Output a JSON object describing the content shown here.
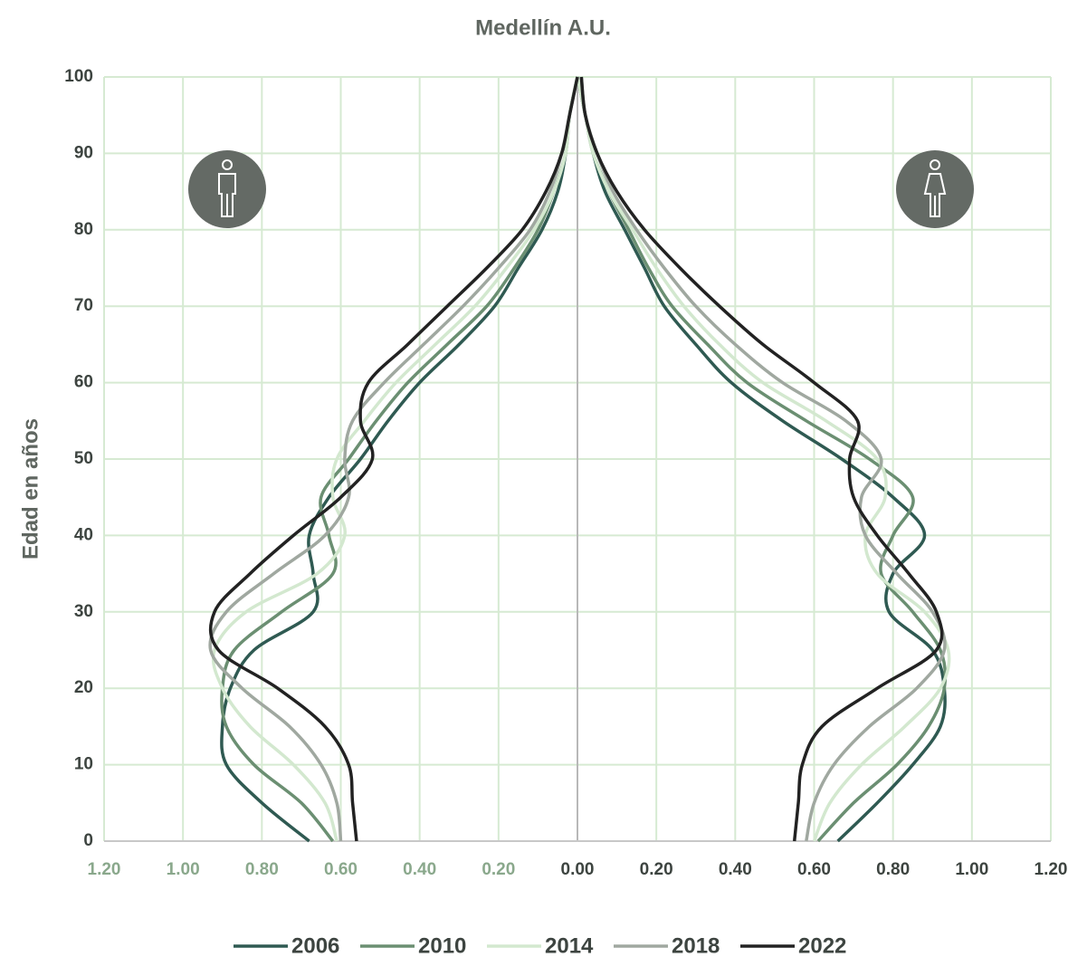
{
  "chart_data": {
    "type": "line",
    "title": "Medellín A.U.",
    "y_label": "Edad en años",
    "y": [
      0,
      5,
      10,
      15,
      20,
      25,
      30,
      35,
      40,
      45,
      50,
      55,
      60,
      65,
      70,
      75,
      80,
      85,
      90,
      95,
      100
    ],
    "xlim": [
      -1.2,
      1.2
    ],
    "xticks": [
      {
        "value": -1.2,
        "label": "1.20"
      },
      {
        "value": -1.0,
        "label": "1.00"
      },
      {
        "value": -0.8,
        "label": "0.80"
      },
      {
        "value": -0.6,
        "label": "0.60"
      },
      {
        "value": -0.4,
        "label": "0.40"
      },
      {
        "value": -0.2,
        "label": "0.20"
      },
      {
        "value": 0,
        "label": "0.00"
      },
      {
        "value": 0.2,
        "label": "0.20"
      },
      {
        "value": 0.4,
        "label": "0.40"
      },
      {
        "value": 0.6,
        "label": "0.60"
      },
      {
        "value": 0.8,
        "label": "0.80"
      },
      {
        "value": 1.0,
        "label": "1.00"
      },
      {
        "value": 1.2,
        "label": "1.20"
      }
    ],
    "ylim": [
      0,
      100
    ],
    "yticks": [
      0,
      10,
      20,
      30,
      40,
      50,
      60,
      70,
      80,
      90,
      100
    ],
    "grid": true,
    "legend": "bottom",
    "series": [
      {
        "name": "2006",
        "color": "#2f5a52",
        "male": [
          -0.68,
          -0.8,
          -0.89,
          -0.9,
          -0.88,
          -0.82,
          -0.67,
          -0.67,
          -0.68,
          -0.63,
          -0.55,
          -0.48,
          -0.4,
          -0.3,
          -0.21,
          -0.15,
          -0.09,
          -0.05,
          -0.03,
          -0.02,
          0
        ],
        "female": [
          0.66,
          0.76,
          0.85,
          0.92,
          0.93,
          0.9,
          0.79,
          0.8,
          0.88,
          0.8,
          0.67,
          0.52,
          0.39,
          0.3,
          0.22,
          0.17,
          0.12,
          0.07,
          0.04,
          0.02,
          0
        ]
      },
      {
        "name": "2010",
        "color": "#6b8f72",
        "male": [
          -0.62,
          -0.7,
          -0.82,
          -0.89,
          -0.9,
          -0.87,
          -0.75,
          -0.62,
          -0.63,
          -0.65,
          -0.58,
          -0.51,
          -0.43,
          -0.33,
          -0.23,
          -0.16,
          -0.1,
          -0.06,
          -0.03,
          -0.02,
          0
        ],
        "female": [
          0.61,
          0.7,
          0.81,
          0.89,
          0.93,
          0.92,
          0.85,
          0.77,
          0.8,
          0.85,
          0.74,
          0.58,
          0.43,
          0.33,
          0.24,
          0.18,
          0.13,
          0.08,
          0.04,
          0.02,
          0
        ]
      },
      {
        "name": "2014",
        "color": "#d3e8cf",
        "male": [
          -0.61,
          -0.64,
          -0.72,
          -0.83,
          -0.9,
          -0.92,
          -0.84,
          -0.66,
          -0.59,
          -0.62,
          -0.61,
          -0.54,
          -0.46,
          -0.36,
          -0.26,
          -0.18,
          -0.11,
          -0.06,
          -0.03,
          -0.02,
          0
        ],
        "female": [
          0.6,
          0.64,
          0.72,
          0.83,
          0.92,
          0.94,
          0.88,
          0.76,
          0.73,
          0.78,
          0.76,
          0.63,
          0.47,
          0.36,
          0.27,
          0.2,
          0.14,
          0.08,
          0.04,
          0.02,
          0
        ]
      },
      {
        "name": "2018",
        "color": "#a0a8a0",
        "male": [
          -0.6,
          -0.61,
          -0.65,
          -0.73,
          -0.85,
          -0.93,
          -0.89,
          -0.77,
          -0.64,
          -0.58,
          -0.59,
          -0.57,
          -0.49,
          -0.39,
          -0.29,
          -0.2,
          -0.12,
          -0.07,
          -0.04,
          -0.02,
          0
        ],
        "female": [
          0.58,
          0.6,
          0.65,
          0.74,
          0.86,
          0.93,
          0.9,
          0.81,
          0.73,
          0.72,
          0.77,
          0.68,
          0.52,
          0.4,
          0.3,
          0.22,
          0.15,
          0.09,
          0.05,
          0.02,
          0.01
        ]
      },
      {
        "name": "2022",
        "color": "#222222",
        "male": [
          -0.56,
          -0.57,
          -0.58,
          -0.64,
          -0.76,
          -0.91,
          -0.92,
          -0.83,
          -0.72,
          -0.6,
          -0.52,
          -0.55,
          -0.53,
          -0.43,
          -0.33,
          -0.23,
          -0.14,
          -0.08,
          -0.04,
          -0.02,
          0
        ],
        "female": [
          0.55,
          0.56,
          0.57,
          0.62,
          0.76,
          0.91,
          0.91,
          0.84,
          0.76,
          0.7,
          0.69,
          0.71,
          0.6,
          0.47,
          0.36,
          0.26,
          0.17,
          0.1,
          0.05,
          0.02,
          0.01
        ]
      }
    ]
  }
}
